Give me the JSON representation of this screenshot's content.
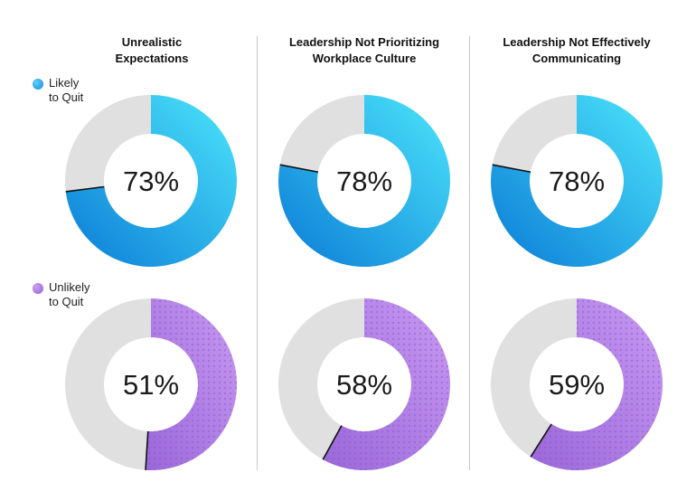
{
  "columns": [
    {
      "title_line1": "Unrealistic",
      "title_line2": "Expectations"
    },
    {
      "title_line1": "Leadership Not Prioritizing",
      "title_line2": "Workplace Culture"
    },
    {
      "title_line1": "Leadership Not Effectively",
      "title_line2": "Communicating"
    }
  ],
  "legend": [
    {
      "line1": "Likely",
      "line2": "to Quit",
      "color": "#1ea6e8"
    },
    {
      "line1": "Unlikely",
      "line2": "to Quit",
      "color": "#b07ee0"
    }
  ],
  "chart_data": {
    "type": "pie",
    "categories": [
      "Unrealistic Expectations",
      "Leadership Not Prioritizing Workplace Culture",
      "Leadership Not Effectively Communicating"
    ],
    "series": [
      {
        "name": "Likely to Quit",
        "values": [
          73,
          78,
          78
        ],
        "labels": [
          "73%",
          "78%",
          "78%"
        ],
        "color_start": "#0a7bd6",
        "color_end": "#4de6fb"
      },
      {
        "name": "Unlikely to Quit",
        "values": [
          51,
          58,
          59
        ],
        "labels": [
          "51%",
          "58%",
          "59%"
        ],
        "color_start": "#9a67d9",
        "color_end": "#c89af2"
      }
    ],
    "remainder_color": "#e0e0e0"
  }
}
